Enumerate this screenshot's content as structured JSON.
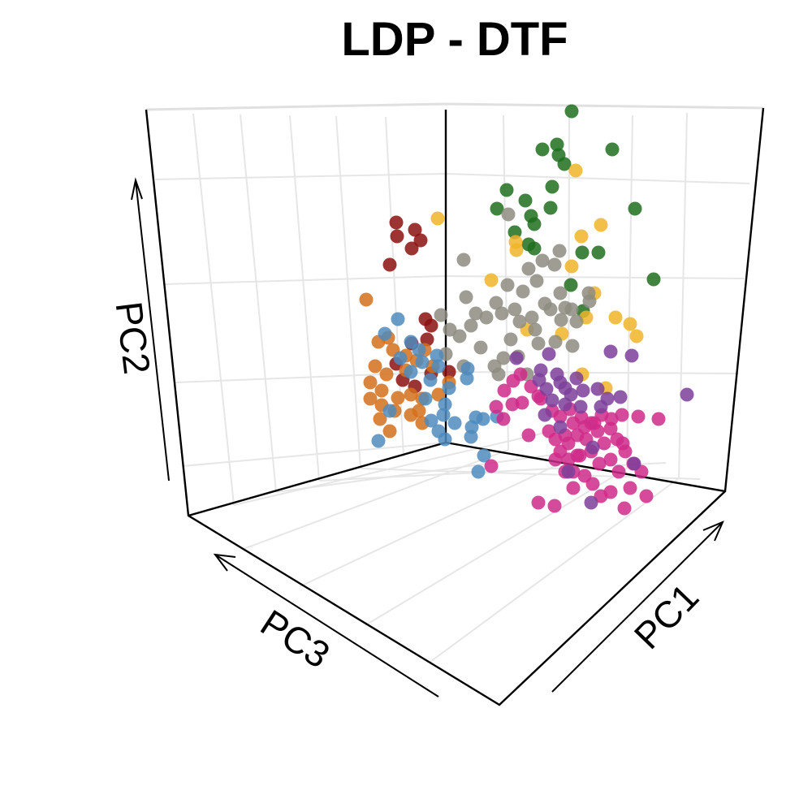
{
  "chart_data": {
    "type": "scatter",
    "title": "LDP - DTF",
    "axes": {
      "x": "PC1",
      "y": "PC2",
      "z": "PC3"
    },
    "grid": true,
    "legend": "none",
    "series": [
      {
        "color": "#1f6e1f",
        "points": [
          [
            704,
            137
          ],
          [
            668,
            184
          ],
          [
            686,
            178
          ],
          [
            688,
            191
          ],
          [
            754,
            184
          ],
          [
            695,
            202
          ],
          [
            624,
            234
          ],
          [
            647,
            247
          ],
          [
            680,
            230
          ],
          [
            612,
            257
          ],
          [
            634,
            286
          ],
          [
            654,
            266
          ],
          [
            658,
            276
          ],
          [
            678,
            256
          ],
          [
            651,
            301
          ],
          [
            658,
            306
          ],
          [
            717,
            311
          ],
          [
            737,
            311
          ],
          [
            782,
            257
          ],
          [
            805,
            344
          ],
          [
            718,
            383
          ],
          [
            703,
            351
          ]
        ]
      },
      {
        "color": "#f0b429",
        "points": [
          [
            709,
            210
          ],
          [
            539,
            269
          ],
          [
            635,
            298
          ],
          [
            636,
            308
          ],
          [
            716,
            291
          ],
          [
            740,
            277
          ],
          [
            704,
            328
          ],
          [
            605,
            345
          ],
          [
            732,
            361
          ],
          [
            758,
            391
          ],
          [
            776,
            399
          ],
          [
            784,
            414
          ],
          [
            649,
            406
          ],
          [
            722,
            391
          ],
          [
            717,
            461
          ],
          [
            746,
            478
          ],
          [
            692,
            411
          ]
        ]
      },
      {
        "color": "#8e8c80",
        "points": [
          [
            626,
            264
          ],
          [
            571,
            320
          ],
          [
            651,
            331
          ],
          [
            668,
            321
          ],
          [
            683,
            326
          ],
          [
            689,
            309
          ],
          [
            625,
            351
          ],
          [
            644,
            359
          ],
          [
            661,
            346
          ],
          [
            671,
            374
          ],
          [
            690,
            361
          ],
          [
            696,
            379
          ],
          [
            574,
            366
          ],
          [
            586,
            386
          ],
          [
            580,
            401
          ],
          [
            599,
            391
          ],
          [
            611,
            373
          ],
          [
            618,
            386
          ],
          [
            634,
            381
          ],
          [
            640,
            396
          ],
          [
            655,
            391
          ],
          [
            659,
            406
          ],
          [
            678,
            381
          ],
          [
            691,
            394
          ],
          [
            704,
            381
          ],
          [
            710,
            396
          ],
          [
            726,
            371
          ],
          [
            705,
            426
          ],
          [
            663,
            423
          ],
          [
            629,
            418
          ],
          [
            620,
            441
          ],
          [
            638,
            439
          ],
          [
            649,
            461
          ],
          [
            614,
            461
          ],
          [
            543,
            388
          ],
          [
            554,
            406
          ],
          [
            566,
            414
          ],
          [
            592,
            428
          ],
          [
            549,
            436
          ],
          [
            571,
            451
          ],
          [
            609,
            451
          ],
          [
            684,
            421
          ],
          [
            725,
            361
          ]
        ]
      },
      {
        "color": "#8b1010",
        "points": [
          [
            488,
            274
          ],
          [
            489,
            291
          ],
          [
            511,
            283
          ],
          [
            518,
            296
          ],
          [
            507,
            306
          ],
          [
            480,
            326
          ],
          [
            524,
            393
          ],
          [
            531,
            401
          ],
          [
            526,
            418
          ],
          [
            488,
            448
          ],
          [
            496,
            468
          ],
          [
            511,
            476
          ],
          [
            531,
            460
          ],
          [
            553,
            458
          ],
          [
            507,
            423
          ]
        ]
      },
      {
        "color": "#d4701c",
        "points": [
          [
            451,
            369
          ],
          [
            466,
            421
          ],
          [
            478,
            416
          ],
          [
            484,
            431
          ],
          [
            500,
            438
          ],
          [
            513,
            444
          ],
          [
            533,
            451
          ],
          [
            523,
            431
          ],
          [
            462,
            451
          ],
          [
            476,
            461
          ],
          [
            470,
            481
          ],
          [
            490,
            490
          ],
          [
            506,
            486
          ],
          [
            520,
            491
          ],
          [
            540,
            486
          ],
          [
            553,
            471
          ],
          [
            456,
            491
          ],
          [
            470,
            499
          ],
          [
            486,
            506
          ],
          [
            506,
            511
          ],
          [
            520,
            521
          ],
          [
            480,
            531
          ],
          [
            468,
            516
          ],
          [
            456,
            471
          ],
          [
            500,
            456
          ],
          [
            516,
            506
          ]
        ]
      },
      {
        "color": "#4f8bbd",
        "points": [
          [
            490,
            393
          ],
          [
            474,
            411
          ],
          [
            506,
            421
          ],
          [
            516,
            431
          ],
          [
            538,
            438
          ],
          [
            493,
            441
          ],
          [
            540,
            451
          ],
          [
            576,
            454
          ],
          [
            575,
            466
          ],
          [
            506,
            458
          ],
          [
            480,
            506
          ],
          [
            524,
            491
          ],
          [
            546,
            511
          ],
          [
            560,
            521
          ],
          [
            540,
            531
          ],
          [
            586,
            514
          ],
          [
            595,
            516
          ],
          [
            612,
            513
          ],
          [
            581,
            526
          ],
          [
            580,
            538
          ],
          [
            596,
            561
          ],
          [
            589,
            581
          ],
          [
            548,
            541
          ],
          [
            466,
            543
          ],
          [
            553,
            478
          ],
          [
            548,
            498
          ],
          [
            530,
            468
          ],
          [
            520,
            446
          ],
          [
            531,
            518
          ]
        ]
      },
      {
        "color": "#cf2a8a",
        "points": [
          [
            632,
            469
          ],
          [
            641,
            461
          ],
          [
            621,
            481
          ],
          [
            631,
            498
          ],
          [
            643,
            496
          ],
          [
            654,
            476
          ],
          [
            663,
            488
          ],
          [
            611,
            501
          ],
          [
            620,
            516
          ],
          [
            651,
            536
          ],
          [
            666,
            491
          ],
          [
            680,
            506
          ],
          [
            690,
            513
          ],
          [
            702,
            504
          ],
          [
            706,
            521
          ],
          [
            716,
            514
          ],
          [
            728,
            521
          ],
          [
            741,
            511
          ],
          [
            753,
            516
          ],
          [
            766,
            511
          ],
          [
            752,
            528
          ],
          [
            760,
            541
          ],
          [
            770,
            556
          ],
          [
            744,
            546
          ],
          [
            736,
            531
          ],
          [
            722,
            541
          ],
          [
            711,
            536
          ],
          [
            700,
            546
          ],
          [
            690,
            556
          ],
          [
            684,
            541
          ],
          [
            676,
            531
          ],
          [
            700,
            566
          ],
          [
            714,
            561
          ],
          [
            728,
            556
          ],
          [
            738,
            571
          ],
          [
            752,
            566
          ],
          [
            762,
            581
          ],
          [
            780,
            571
          ],
          [
            790,
            581
          ],
          [
            776,
            601
          ],
          [
            752,
            606
          ],
          [
            740,
            611
          ],
          [
            730,
            596
          ],
          [
            720,
            586
          ],
          [
            706,
            581
          ],
          [
            696,
            581
          ],
          [
            706,
            601
          ],
          [
            711,
            561
          ],
          [
            786,
            513
          ],
          [
            811,
            516
          ],
          [
            796,
            611
          ],
          [
            769,
            626
          ],
          [
            683,
            623
          ],
          [
            663,
            619
          ],
          [
            605,
            574
          ],
          [
            732,
            521
          ],
          [
            720,
            526
          ],
          [
            696,
            536
          ],
          [
            684,
            566
          ],
          [
            767,
            546
          ]
        ]
      },
      {
        "color": "#7d3f9a",
        "points": [
          [
            636,
            441
          ],
          [
            676,
            436
          ],
          [
            666,
            456
          ],
          [
            686,
            461
          ],
          [
            690,
            471
          ],
          [
            710,
            466
          ],
          [
            718,
            481
          ],
          [
            736,
            479
          ],
          [
            748,
            491
          ],
          [
            764,
            489
          ],
          [
            778,
            438
          ],
          [
            752,
            433
          ],
          [
            664,
            468
          ],
          [
            673,
            479
          ],
          [
            680,
            493
          ],
          [
            696,
            498
          ],
          [
            696,
            478
          ],
          [
            671,
            511
          ],
          [
            690,
            526
          ],
          [
            703,
            486
          ],
          [
            715,
            501
          ],
          [
            846,
            486
          ],
          [
            740,
            501
          ],
          [
            781,
            571
          ],
          [
            700,
            581
          ],
          [
            728,
            619
          ],
          [
            730,
            551
          ]
        ]
      }
    ]
  }
}
